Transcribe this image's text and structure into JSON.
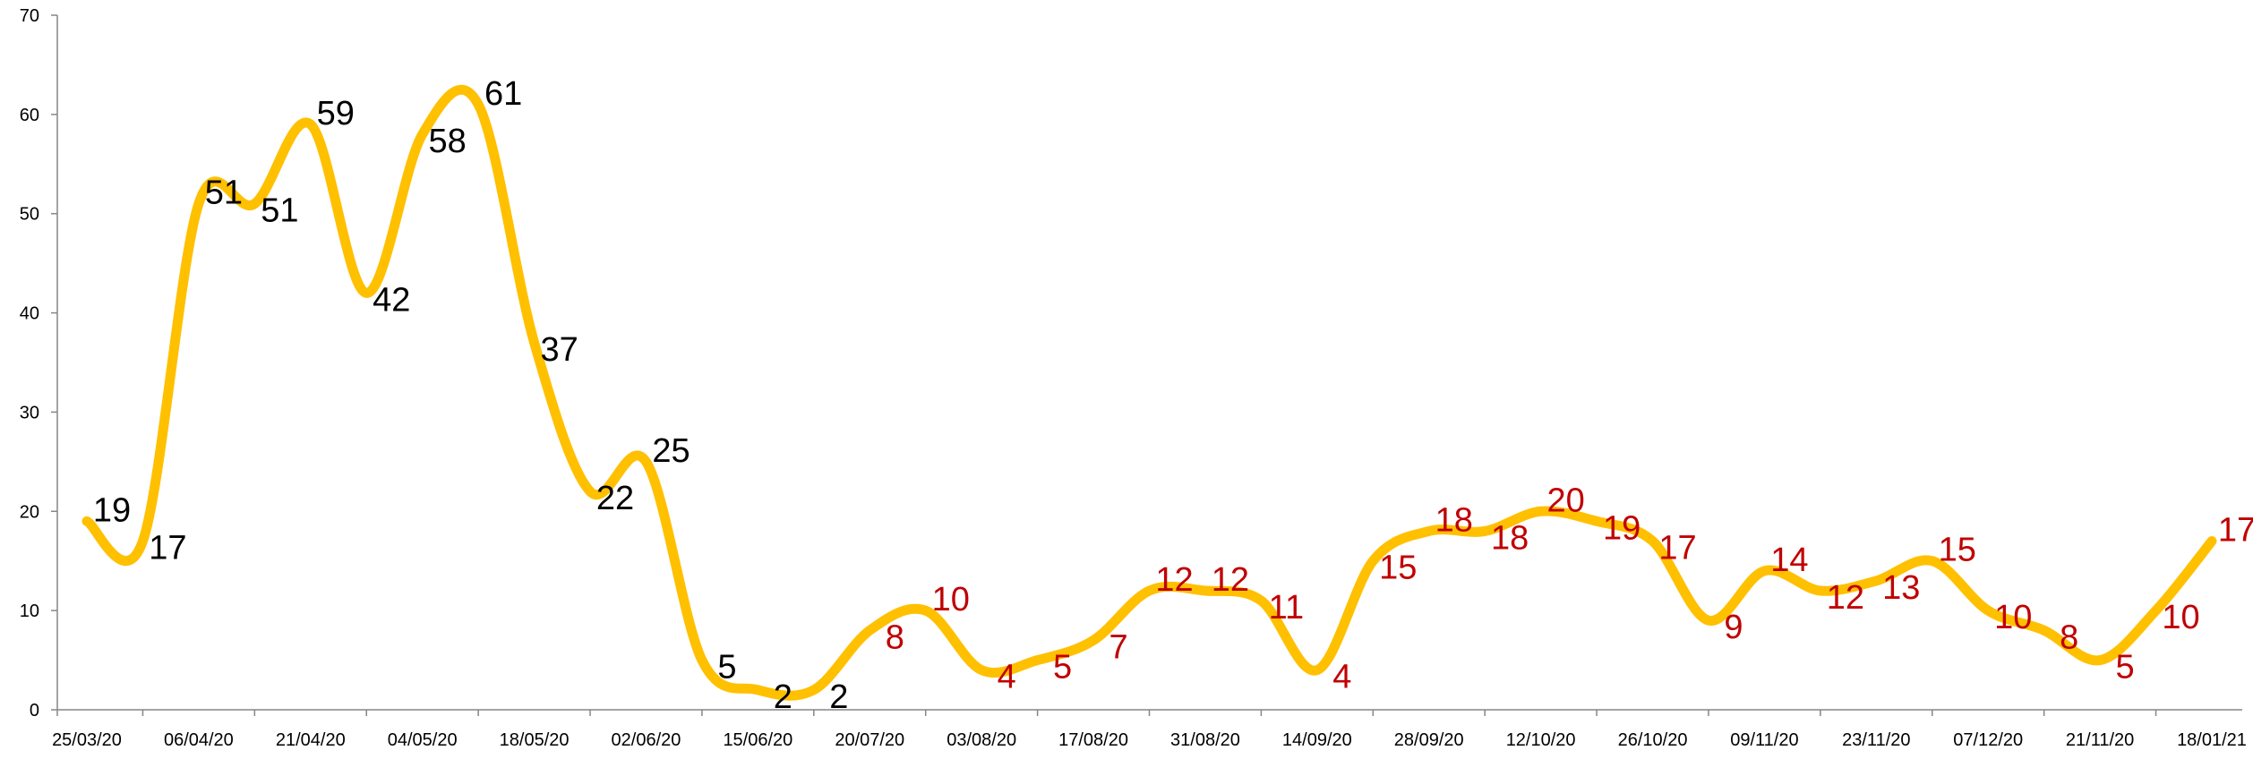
{
  "colors": {
    "line": "#FFC000",
    "label_early": "#000000",
    "label_late": "#C00000",
    "axis": "#868686"
  },
  "chart_data": {
    "type": "line",
    "title": "",
    "xlabel": "",
    "ylabel": "",
    "ylim": [
      0,
      70
    ],
    "y_ticks": [
      0,
      10,
      20,
      30,
      40,
      50,
      60,
      70
    ],
    "grid": false,
    "legend": "none",
    "x_tick_labels": [
      "25/03/20",
      "06/04/20",
      "21/04/20",
      "04/05/20",
      "18/05/20",
      "02/06/20",
      "15/06/20",
      "20/07/20",
      "03/08/20",
      "17/08/20",
      "31/08/20",
      "14/09/20",
      "28/09/20",
      "12/10/20",
      "26/10/20",
      "09/11/20",
      "23/11/20",
      "07/12/20",
      "21/11/20",
      "18/01/21"
    ],
    "series": [
      {
        "values": [
          19,
          17,
          51,
          51,
          59,
          42,
          58,
          61,
          37,
          22,
          25,
          5,
          2,
          2,
          8,
          10,
          4,
          5,
          7,
          12,
          12,
          11,
          4,
          15,
          18,
          18,
          20,
          19,
          17,
          9,
          14,
          12,
          13,
          15,
          10,
          8,
          5,
          10,
          17
        ],
        "label_color_split": 14
      }
    ]
  }
}
